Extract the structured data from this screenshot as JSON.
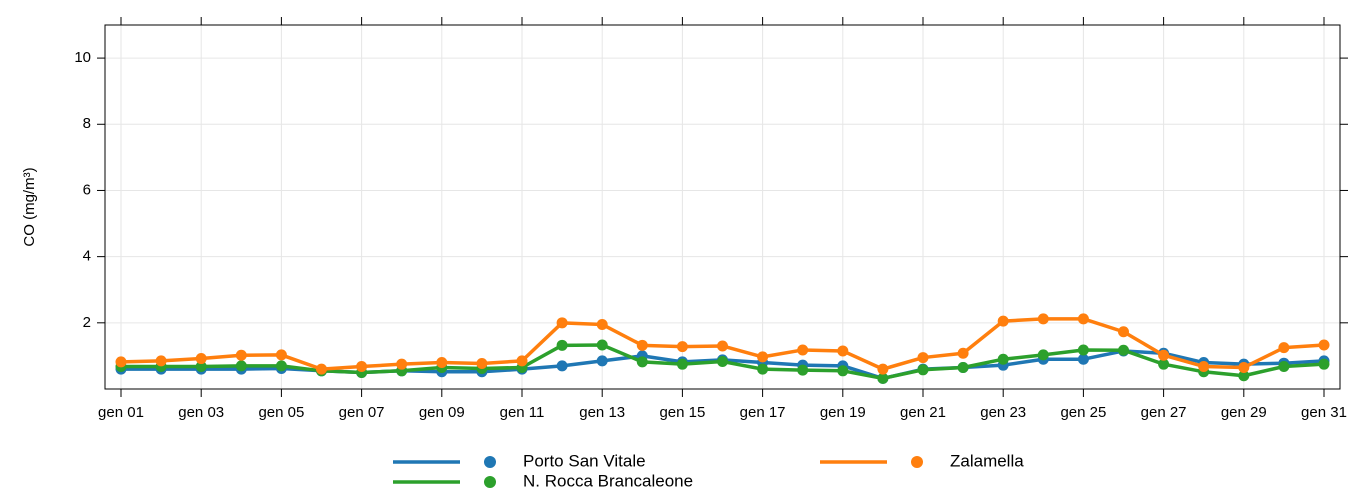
{
  "chart_data": {
    "type": "line",
    "y_label": "CO (mg/m³)",
    "categories": [
      "gen 01",
      null,
      "gen 03",
      null,
      "gen 05",
      null,
      "gen 07",
      null,
      "gen 09",
      null,
      "gen 11",
      null,
      "gen 13",
      null,
      "gen 15",
      null,
      "gen 17",
      null,
      "gen 19",
      null,
      "gen 21",
      null,
      "gen 23",
      null,
      "gen 25",
      null,
      "gen 27",
      null,
      "gen 29",
      null,
      "gen 31"
    ],
    "series": [
      {
        "name": "Porto San Vitale",
        "color": "#1f77b4",
        "values": [
          0.6,
          0.6,
          0.6,
          0.6,
          0.62,
          0.55,
          0.5,
          0.55,
          0.52,
          0.52,
          0.6,
          0.7,
          0.85,
          1.0,
          0.82,
          0.88,
          0.8,
          0.72,
          0.7,
          0.32,
          0.6,
          0.65,
          0.72,
          0.9,
          0.9,
          1.15,
          1.08,
          0.8,
          0.75,
          0.78,
          0.85
        ]
      },
      {
        "name": "N. Rocca Brancaleone",
        "color": "#2ca02c",
        "values": [
          0.68,
          0.68,
          0.68,
          0.7,
          0.7,
          0.55,
          0.5,
          0.55,
          0.65,
          0.62,
          0.65,
          1.32,
          1.33,
          0.82,
          0.75,
          0.83,
          0.6,
          0.57,
          0.55,
          0.32,
          0.58,
          0.65,
          0.9,
          1.03,
          1.18,
          1.17,
          0.75,
          0.52,
          0.4,
          0.68,
          0.75
        ]
      },
      {
        "name": "Zalamella",
        "color": "#ff7f0e",
        "values": [
          0.82,
          0.85,
          0.92,
          1.02,
          1.03,
          0.6,
          0.68,
          0.75,
          0.8,
          0.77,
          0.85,
          2.0,
          1.95,
          1.32,
          1.28,
          1.3,
          0.97,
          1.18,
          1.15,
          0.6,
          0.95,
          1.08,
          2.05,
          2.12,
          2.12,
          1.73,
          1.02,
          0.68,
          0.65,
          1.25,
          1.33
        ]
      }
    ],
    "ylim": [
      0,
      11
    ],
    "yticks": [
      2,
      4,
      6,
      8,
      10
    ],
    "grid": true
  }
}
